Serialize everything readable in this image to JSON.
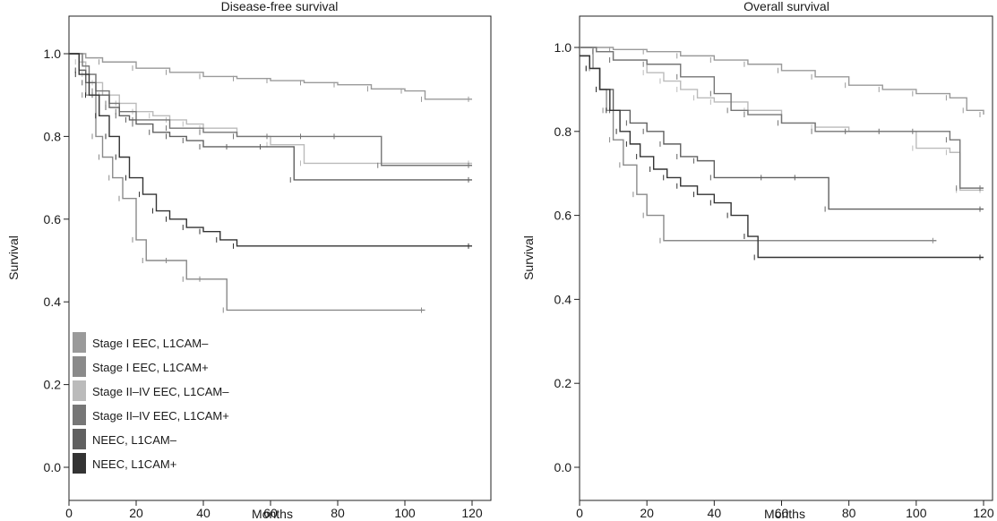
{
  "chart_data": [
    {
      "type": "line",
      "subtype": "kaplan-meier",
      "title": "Disease-free survival",
      "xlabel": "Months",
      "ylabel": "Survival",
      "xlim": [
        0,
        120
      ],
      "ylim": [
        0,
        1.0
      ],
      "xticks": [
        "0",
        "20",
        "40",
        "60",
        "80",
        "100",
        "120"
      ],
      "yticks": [
        "0.0",
        "0.2",
        "0.4",
        "0.6",
        "0.8",
        "1.0"
      ],
      "grid": false,
      "legend_position": "bottom-left",
      "series": [
        {
          "name": "Stage I EEC, L1CAM–",
          "color": "#9a9a9a",
          "x": [
            0,
            5,
            10,
            20,
            30,
            40,
            50,
            60,
            70,
            80,
            90,
            100,
            106,
            120
          ],
          "y": [
            1.0,
            0.99,
            0.98,
            0.965,
            0.955,
            0.945,
            0.94,
            0.935,
            0.93,
            0.925,
            0.915,
            0.91,
            0.89,
            0.89
          ]
        },
        {
          "name": "Stage I EEC, L1CAM+",
          "color": "#8a8a8a",
          "x": [
            0,
            3,
            5,
            8,
            10,
            13,
            16,
            20,
            23,
            30,
            35,
            40,
            47,
            106
          ],
          "y": [
            1.0,
            0.96,
            0.9,
            0.8,
            0.75,
            0.7,
            0.65,
            0.55,
            0.5,
            0.5,
            0.455,
            0.455,
            0.38,
            0.38
          ]
        },
        {
          "name": "Stage II–IV EEC, L1CAM–",
          "color": "#bbbbbb",
          "x": [
            0,
            3,
            5,
            8,
            10,
            15,
            20,
            25,
            30,
            35,
            40,
            50,
            60,
            70,
            120
          ],
          "y": [
            1.0,
            0.98,
            0.95,
            0.93,
            0.9,
            0.88,
            0.86,
            0.85,
            0.84,
            0.83,
            0.82,
            0.8,
            0.78,
            0.735,
            0.735
          ]
        },
        {
          "name": "Stage II–IV EEC, L1CAM+",
          "color": "#767676",
          "x": [
            0,
            4,
            6,
            8,
            12,
            15,
            20,
            30,
            40,
            50,
            60,
            70,
            80,
            93,
            120
          ],
          "y": [
            1.0,
            0.97,
            0.95,
            0.91,
            0.88,
            0.86,
            0.84,
            0.82,
            0.81,
            0.8,
            0.8,
            0.8,
            0.8,
            0.73,
            0.73
          ]
        },
        {
          "name": "NEEC, L1CAM–",
          "color": "#606060",
          "x": [
            0,
            3,
            5,
            8,
            12,
            15,
            18,
            20,
            25,
            30,
            35,
            40,
            48,
            58,
            67,
            120
          ],
          "y": [
            1.0,
            0.96,
            0.93,
            0.9,
            0.87,
            0.85,
            0.84,
            0.83,
            0.81,
            0.8,
            0.79,
            0.775,
            0.775,
            0.775,
            0.695,
            0.695
          ]
        },
        {
          "name": "NEEC, L1CAM+",
          "color": "#333333",
          "x": [
            0,
            3,
            6,
            9,
            12,
            15,
            18,
            22,
            26,
            30,
            35,
            40,
            45,
            50,
            120
          ],
          "y": [
            1.0,
            0.95,
            0.9,
            0.85,
            0.8,
            0.75,
            0.7,
            0.66,
            0.62,
            0.6,
            0.58,
            0.57,
            0.55,
            0.535,
            0.535
          ]
        }
      ]
    },
    {
      "type": "line",
      "subtype": "kaplan-meier",
      "title": "Overall survival",
      "xlabel": "Months",
      "ylabel": "Survival",
      "xlim": [
        0,
        120
      ],
      "ylim": [
        0,
        1.0
      ],
      "xticks": [
        "0",
        "20",
        "40",
        "60",
        "80",
        "100",
        "120"
      ],
      "yticks": [
        "0.0",
        "0.2",
        "0.4",
        "0.6",
        "0.8",
        "1.0"
      ],
      "grid": false,
      "legend_position": "none",
      "series": [
        {
          "name": "Stage I EEC, L1CAM–",
          "color": "#9a9a9a",
          "x": [
            0,
            10,
            20,
            30,
            40,
            50,
            60,
            70,
            80,
            90,
            100,
            110,
            115,
            120
          ],
          "y": [
            1.0,
            0.995,
            0.99,
            0.98,
            0.97,
            0.96,
            0.945,
            0.93,
            0.91,
            0.9,
            0.89,
            0.88,
            0.85,
            0.84
          ]
        },
        {
          "name": "Stage I EEC, L1CAM+",
          "color": "#8a8a8a",
          "x": [
            0,
            4,
            6,
            8,
            10,
            13,
            17,
            20,
            25,
            106
          ],
          "y": [
            1.0,
            0.95,
            0.9,
            0.85,
            0.78,
            0.72,
            0.65,
            0.6,
            0.54,
            0.54
          ]
        },
        {
          "name": "Stage II–IV EEC, L1CAM–",
          "color": "#bbbbbb",
          "x": [
            0,
            5,
            10,
            20,
            25,
            30,
            35,
            40,
            50,
            60,
            70,
            80,
            90,
            100,
            110,
            113,
            120
          ],
          "y": [
            1.0,
            0.99,
            0.97,
            0.94,
            0.92,
            0.9,
            0.88,
            0.87,
            0.85,
            0.82,
            0.81,
            0.8,
            0.8,
            0.76,
            0.75,
            0.66,
            0.66
          ]
        },
        {
          "name": "Stage II–IV EEC, L1CAM+",
          "color": "#767676",
          "x": [
            0,
            5,
            10,
            20,
            30,
            40,
            45,
            50,
            60,
            70,
            80,
            90,
            100,
            110,
            113,
            120
          ],
          "y": [
            1.0,
            0.99,
            0.97,
            0.96,
            0.93,
            0.89,
            0.85,
            0.84,
            0.82,
            0.8,
            0.8,
            0.8,
            0.8,
            0.78,
            0.665,
            0.665
          ]
        },
        {
          "name": "NEEC, L1CAM–",
          "color": "#606060",
          "x": [
            0,
            3,
            6,
            10,
            15,
            20,
            25,
            30,
            35,
            40,
            55,
            65,
            74,
            120
          ],
          "y": [
            0.98,
            0.95,
            0.9,
            0.85,
            0.82,
            0.8,
            0.77,
            0.74,
            0.73,
            0.69,
            0.69,
            0.69,
            0.615,
            0.615
          ]
        },
        {
          "name": "NEEC, L1CAM+",
          "color": "#333333",
          "x": [
            0,
            3,
            6,
            9,
            12,
            15,
            18,
            22,
            26,
            30,
            35,
            40,
            45,
            50,
            53,
            120
          ],
          "y": [
            0.98,
            0.95,
            0.9,
            0.85,
            0.8,
            0.77,
            0.74,
            0.71,
            0.69,
            0.67,
            0.65,
            0.63,
            0.6,
            0.55,
            0.5,
            0.5
          ]
        }
      ]
    }
  ]
}
